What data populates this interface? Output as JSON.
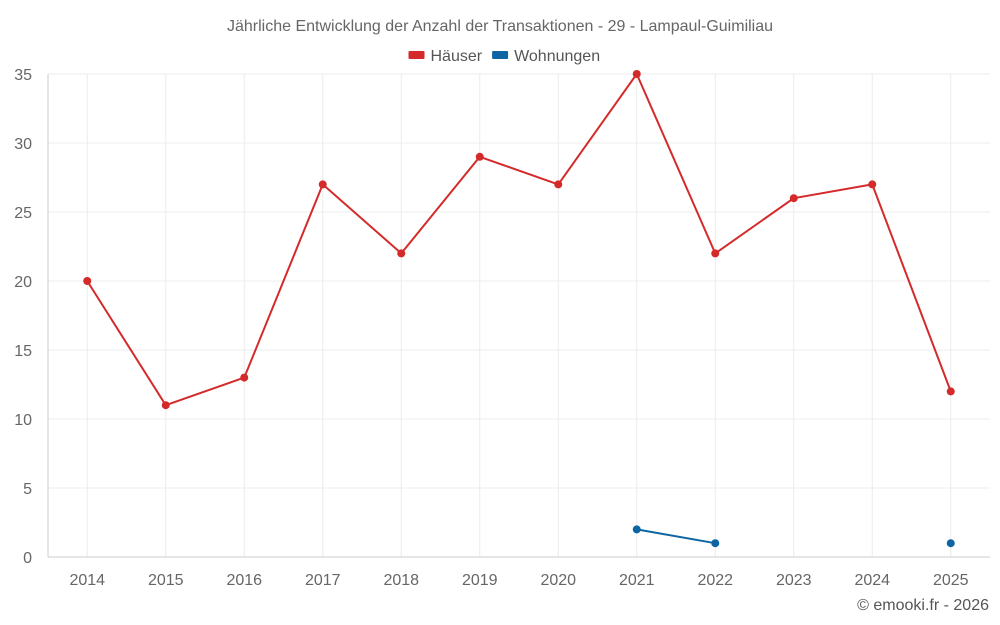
{
  "chart_data": {
    "type": "line",
    "title": "Jährliche Entwicklung der Anzahl der Transaktionen - 29 - Lampaul-Guimiliau",
    "xlabel": "",
    "ylabel": "",
    "categories": [
      "2014",
      "2015",
      "2016",
      "2017",
      "2018",
      "2019",
      "2020",
      "2021",
      "2022",
      "2023",
      "2024",
      "2025"
    ],
    "ylim": [
      0,
      35
    ],
    "yticks": [
      0,
      5,
      10,
      15,
      20,
      25,
      30,
      35
    ],
    "grid": true,
    "legend_position": "top-center",
    "series": [
      {
        "name": "Häuser",
        "color": "#d42a2a",
        "values": [
          20,
          11,
          13,
          27,
          22,
          29,
          27,
          35,
          22,
          26,
          27,
          12
        ]
      },
      {
        "name": "Wohnungen",
        "color": "#0d65a3",
        "values": [
          null,
          null,
          null,
          null,
          null,
          null,
          null,
          2,
          1,
          null,
          null,
          1
        ]
      }
    ]
  },
  "credit": "© emooki.fr - 2026"
}
